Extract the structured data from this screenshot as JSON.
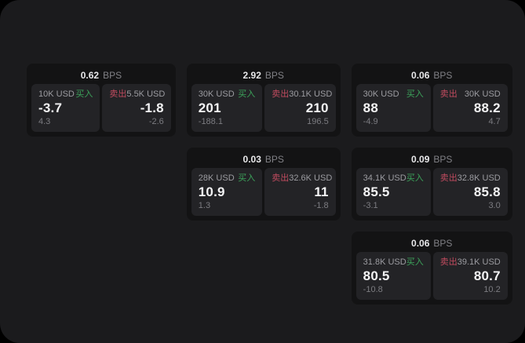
{
  "colors": {
    "panel-bg": "#1b1b1d",
    "card-bg": "#131314",
    "subpanel-bg": "#232326",
    "buy": "#3ca35a",
    "sell": "#c14b5f"
  },
  "labels": {
    "bps_unit": "BPS",
    "buy": "买入",
    "sell": "卖出"
  },
  "cards": [
    {
      "col": 1,
      "row": 1,
      "bps": "0.62",
      "buy": {
        "amount": "10K USD",
        "price": "-3.7",
        "delta": "4.3"
      },
      "sell": {
        "amount": "5.5K USD",
        "price": "-1.8",
        "delta": "-2.6"
      }
    },
    {
      "col": 2,
      "row": 1,
      "bps": "2.92",
      "buy": {
        "amount": "30K USD",
        "price": "201",
        "delta": "-188.1"
      },
      "sell": {
        "amount": "30.1K USD",
        "price": "210",
        "delta": "196.5"
      }
    },
    {
      "col": 3,
      "row": 1,
      "bps": "0.06",
      "buy": {
        "amount": "30K USD",
        "price": "88",
        "delta": "-4.9"
      },
      "sell": {
        "amount": "30K USD",
        "price": "88.2",
        "delta": "4.7"
      }
    },
    {
      "col": 2,
      "row": 2,
      "bps": "0.03",
      "buy": {
        "amount": "28K USD",
        "price": "10.9",
        "delta": "1.3"
      },
      "sell": {
        "amount": "32.6K USD",
        "price": "11",
        "delta": "-1.8"
      }
    },
    {
      "col": 3,
      "row": 2,
      "bps": "0.09",
      "buy": {
        "amount": "34.1K USD",
        "price": "85.5",
        "delta": "-3.1"
      },
      "sell": {
        "amount": "32.8K USD",
        "price": "85.8",
        "delta": "3.0"
      }
    },
    {
      "col": 3,
      "row": 3,
      "bps": "0.06",
      "buy": {
        "amount": "31.8K USD",
        "price": "80.5",
        "delta": "-10.8"
      },
      "sell": {
        "amount": "39.1K USD",
        "price": "80.7",
        "delta": "10.2"
      }
    }
  ]
}
